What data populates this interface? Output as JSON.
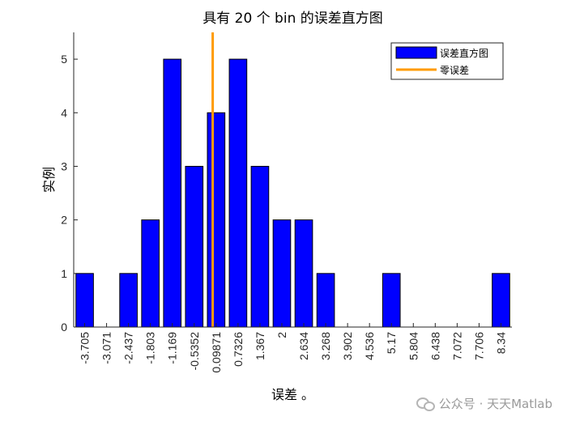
{
  "chart_data": {
    "type": "bar",
    "title": "具有 20 个 bin 的误差直方图",
    "xlabel": "误差 。",
    "ylabel": "实例",
    "categories": [
      "-3.705",
      "-3.071",
      "-2.437",
      "-1.803",
      "-1.169",
      "-0.5352",
      "0.09871",
      "0.7326",
      "1.367",
      "2",
      "2.634",
      "3.268",
      "3.902",
      "4.536",
      "5.17",
      "5.804",
      "6.438",
      "7.072",
      "7.706",
      "8.34"
    ],
    "values": [
      1,
      0,
      1,
      2,
      5,
      3,
      4,
      5,
      3,
      2,
      2,
      1,
      0,
      0,
      1,
      0,
      0,
      0,
      0,
      1
    ],
    "ylim": [
      0,
      5.5
    ],
    "yticks": [
      0,
      1,
      2,
      3,
      4,
      5
    ],
    "zero_line_x": 0,
    "legend": {
      "placement": "top-right",
      "entries": [
        {
          "label": "误差直方图",
          "color": "#0000ff",
          "kind": "bar"
        },
        {
          "label": "零误差",
          "color": "#ff9b00",
          "kind": "line"
        }
      ]
    },
    "colors": {
      "bar_fill": "#0000ff",
      "bar_edge": "#000000",
      "zero_line": "#ff9b00"
    }
  },
  "watermark": {
    "text": "公众号 · 天天Matlab"
  }
}
